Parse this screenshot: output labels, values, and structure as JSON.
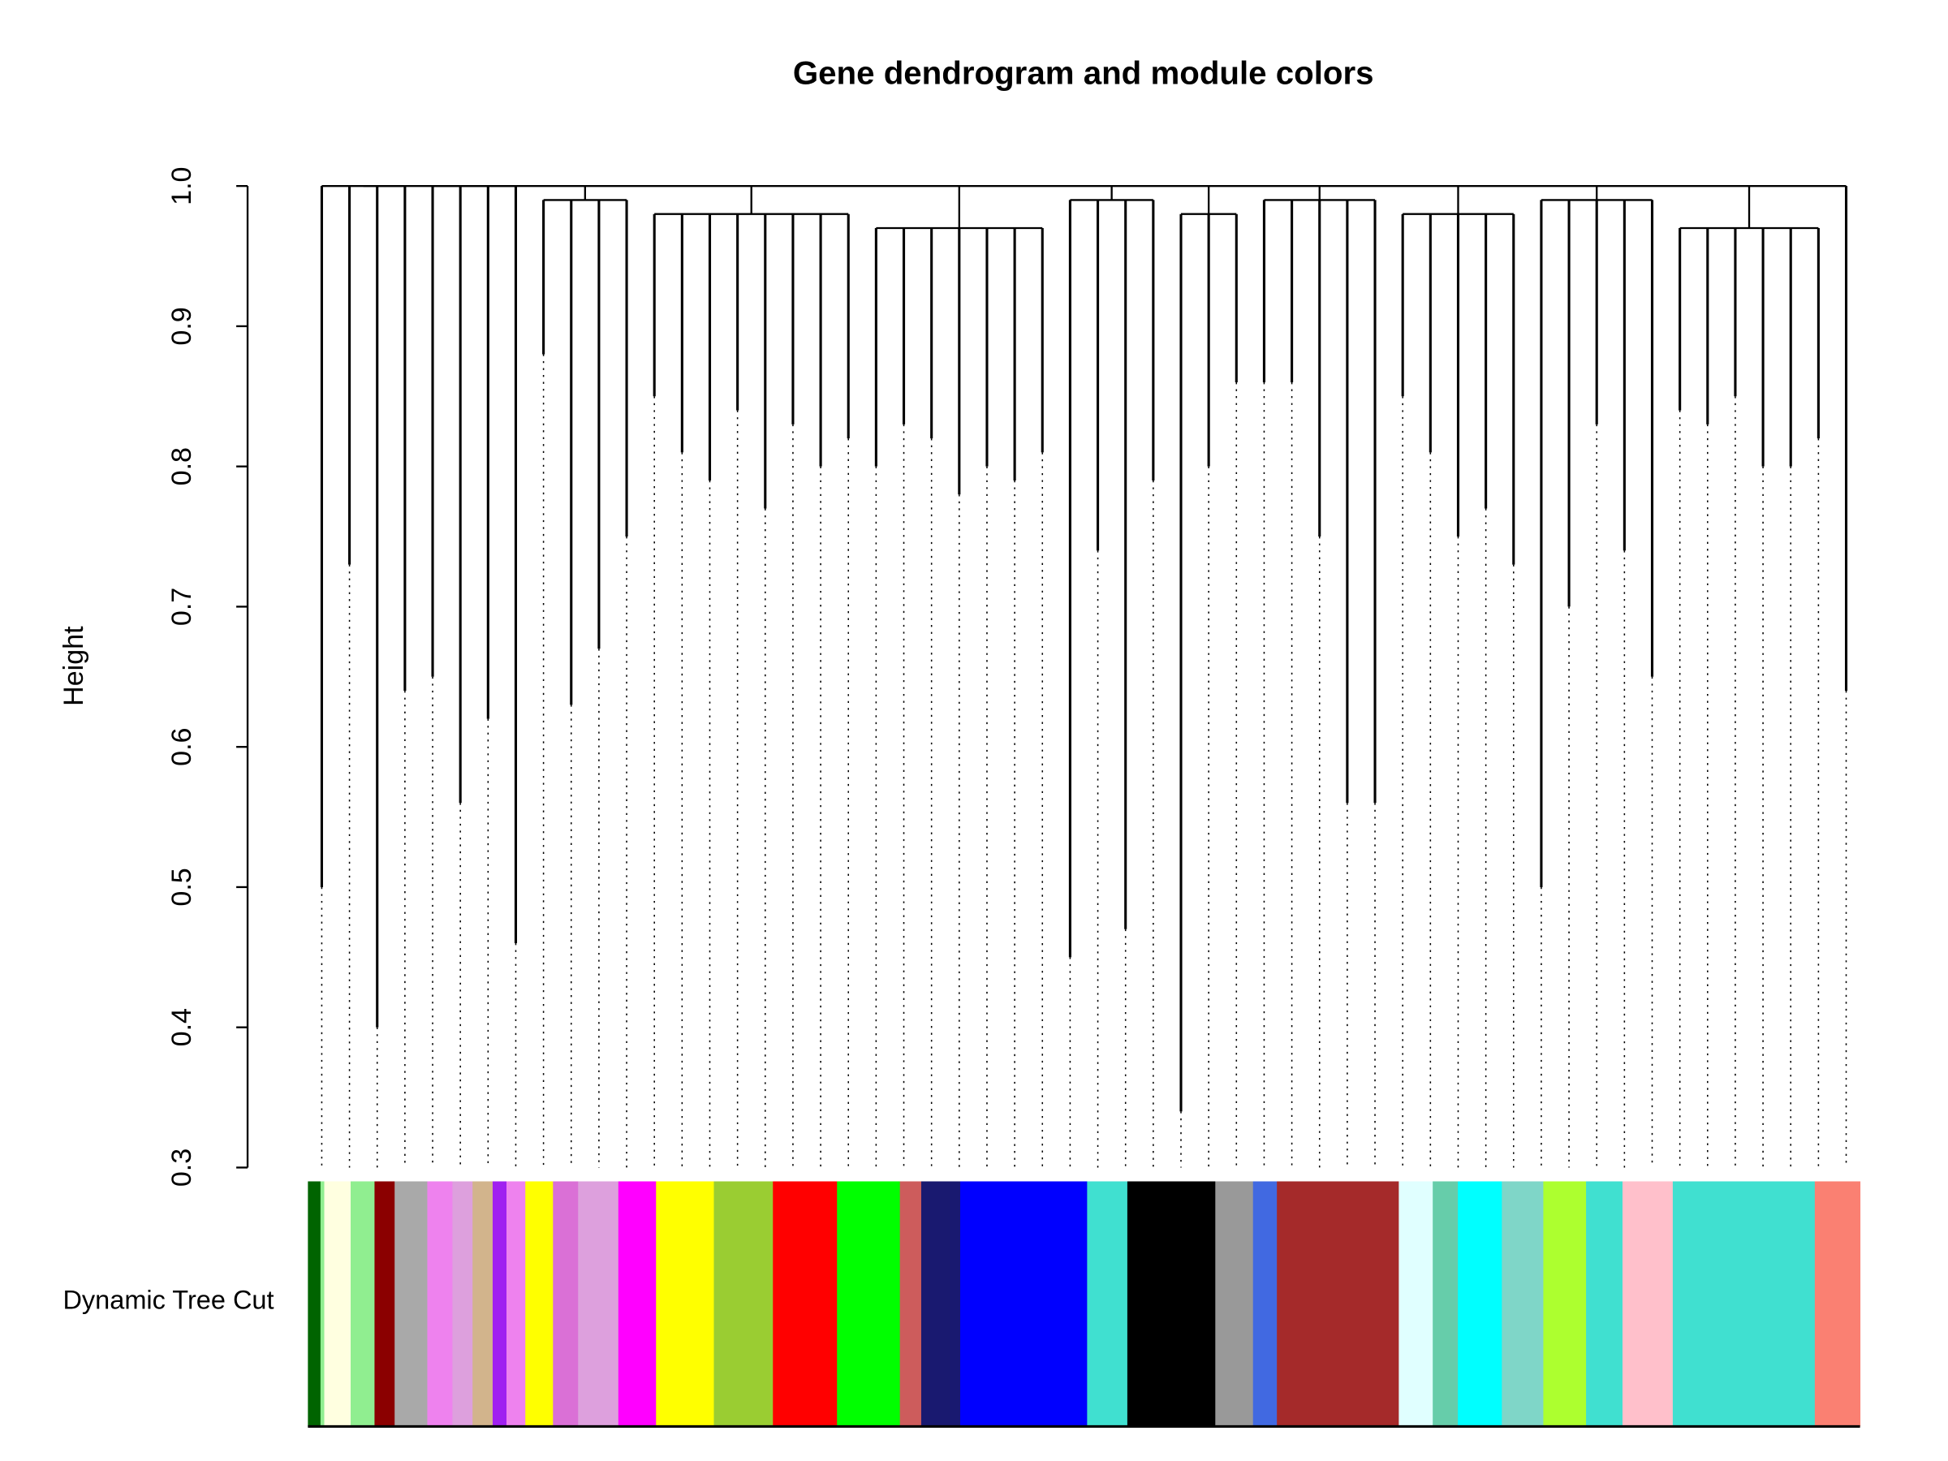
{
  "chart_data": {
    "type": "dendrogram",
    "title": "Gene dendrogram and module colors",
    "y_label": "Height",
    "ylim": [
      0.3,
      1.0
    ],
    "yticks": [
      0.3,
      0.4,
      0.5,
      0.6,
      0.7,
      0.8,
      0.9,
      {
        "value": 1.0,
        "label": "1.0"
      }
    ],
    "clusters": [
      {
        "height": 1.0,
        "leaves": [
          0.5,
          0.73,
          0.4,
          0.64
        ]
      },
      {
        "height": 1.0,
        "leaves": [
          0.65,
          0.56,
          0.62,
          0.46
        ]
      },
      {
        "height": 0.99,
        "leaves": [
          0.88,
          0.63,
          0.67,
          0.75
        ]
      },
      {
        "height": 0.98,
        "leaves": [
          0.85,
          0.81,
          0.79,
          0.84,
          0.77,
          0.83,
          0.8,
          0.82
        ]
      },
      {
        "height": 0.97,
        "leaves": [
          0.8,
          0.83,
          0.82,
          0.78,
          0.8,
          0.79,
          0.81
        ]
      },
      {
        "height": 0.99,
        "leaves": [
          0.45,
          0.74,
          0.47,
          0.79
        ]
      },
      {
        "height": 0.98,
        "leaves": [
          0.34,
          0.8,
          0.86
        ]
      },
      {
        "height": 0.99,
        "leaves": [
          0.86,
          0.86,
          0.75,
          0.56,
          0.56
        ]
      },
      {
        "height": 0.98,
        "leaves": [
          0.85,
          0.81,
          0.75,
          0.77,
          0.73
        ]
      },
      {
        "height": 0.99,
        "leaves": [
          0.5,
          0.7,
          0.83,
          0.74,
          0.65
        ]
      },
      {
        "height": 0.97,
        "leaves": [
          0.84,
          0.83,
          0.85,
          0.8,
          0.8,
          0.82
        ]
      },
      {
        "height": 1.0,
        "leaves": [
          0.64
        ]
      }
    ],
    "color_bar_label": "Dynamic Tree Cut",
    "modules": [
      {
        "color": "#006400",
        "size": 10
      },
      {
        "color": "#90ee90",
        "size": 3
      },
      {
        "color": "#ffffe0",
        "size": 21
      },
      {
        "color": "#90ee90",
        "size": 19
      },
      {
        "color": "#8b0000",
        "size": 16
      },
      {
        "color": "#a9a9a9",
        "size": 26
      },
      {
        "color": "#ee82ee",
        "size": 20
      },
      {
        "color": "#dda0dd",
        "size": 16
      },
      {
        "color": "#d2b48c",
        "size": 16
      },
      {
        "color": "#a020f0",
        "size": 11
      },
      {
        "color": "#ee82ee",
        "size": 15
      },
      {
        "color": "#ffff00",
        "size": 22
      },
      {
        "color": "#da70d6",
        "size": 20
      },
      {
        "color": "#dda0dd",
        "size": 32
      },
      {
        "color": "#ff00ff",
        "size": 30
      },
      {
        "color": "#ffff00",
        "size": 46
      },
      {
        "color": "#9acd32",
        "size": 47
      },
      {
        "color": "#ff0000",
        "size": 51
      },
      {
        "color": "#00ff00",
        "size": 50
      },
      {
        "color": "#cd5c5c",
        "size": 17
      },
      {
        "color": "#191970",
        "size": 31
      },
      {
        "color": "#0000ff",
        "size": 101
      },
      {
        "color": "#40e0d0",
        "size": 32
      },
      {
        "color": "#000000",
        "size": 70
      },
      {
        "color": "#999999",
        "size": 30
      },
      {
        "color": "#4169e1",
        "size": 19
      },
      {
        "color": "#a52a2a",
        "size": 97
      },
      {
        "color": "#e0ffff",
        "size": 27
      },
      {
        "color": "#66cdaa",
        "size": 20
      },
      {
        "color": "#00ffff",
        "size": 35
      },
      {
        "color": "#7fd6c8",
        "size": 33
      },
      {
        "color": "#adff2f",
        "size": 34
      },
      {
        "color": "#40e0d0",
        "size": 29
      },
      {
        "color": "#ffc0cb",
        "size": 40
      },
      {
        "color": "#40e0d0",
        "size": 113
      },
      {
        "color": "#fa8072",
        "size": 36
      }
    ]
  }
}
